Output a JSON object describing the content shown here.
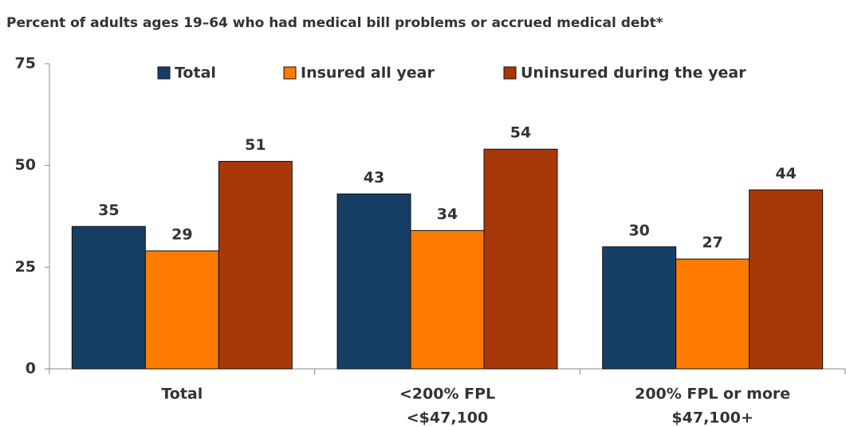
{
  "chart_data": {
    "type": "bar",
    "title": "Percent of adults ages 19–64 who had medical bill problems or accrued medical debt*",
    "categories": [
      [
        "Total"
      ],
      [
        "<200% FPL",
        "<$47,100"
      ],
      [
        "200% FPL or more",
        "$47,100+"
      ]
    ],
    "series": [
      {
        "name": "Total",
        "color": "#173f65",
        "values": [
          35,
          43,
          30
        ]
      },
      {
        "name": "Insured all year",
        "color": "#ff7a00",
        "values": [
          29,
          34,
          27
        ]
      },
      {
        "name": "Uninsured during the year",
        "color": "#a8370a",
        "values": [
          51,
          54,
          44
        ]
      }
    ],
    "ylim": [
      0,
      75
    ],
    "yticks": [
      0,
      25,
      50,
      75
    ],
    "grid": false,
    "legend": "top"
  }
}
